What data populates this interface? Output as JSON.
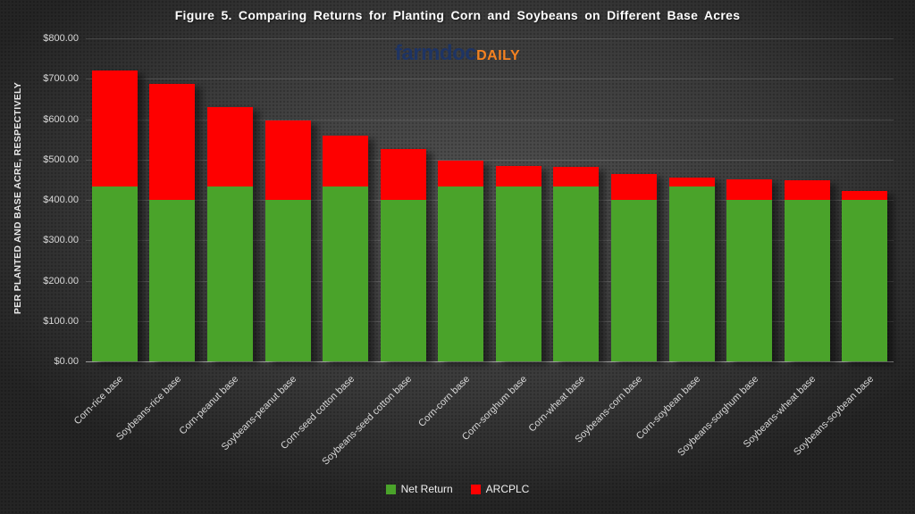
{
  "title": "Figure 5. Comparing Returns for Planting Corn and Soybeans on Different Base Acres",
  "logo": {
    "brand": "farmdoc",
    "suffix": "DAILY",
    "brand_color": "#1e3464",
    "suffix_color": "#f58220"
  },
  "colors": {
    "background_center": "#565656",
    "background_edge": "#242424",
    "net_return_green": "#4aa32a",
    "arcplc_red": "#fe0000",
    "axis_text": "#d8d8d8",
    "title_text": "#ffffff"
  },
  "chart_data": {
    "type": "bar",
    "stacked": true,
    "title": "Figure 5. Comparing Returns for Planting Corn and Soybeans on Different Base Acres",
    "xlabel": "",
    "ylabel": "PER PLANTED AND BASE ACRE, RESPECTIVELY",
    "ylim": [
      0,
      800
    ],
    "ytick_step": 100,
    "ytick_labels": [
      "$0.00",
      "$100.00",
      "$200.00",
      "$300.00",
      "$400.00",
      "$500.00",
      "$600.00",
      "$700.00",
      "$800.00"
    ],
    "grid": true,
    "legend_position": "bottom",
    "categories": [
      "Corn-rice base",
      "Soybeans-rice base",
      "Corn-peanut base",
      "Soybeans-peanut base",
      "Corn-seed cotton base",
      "Soybeans-seed cotton base",
      "Corn-corn base",
      "Corn-sorghum base",
      "Corn-wheat base",
      "Soybeans-corn base",
      "Corn-soybean base",
      "Soybeans-sorghum base",
      "Soybeans-wheat base",
      "Soybeans-soybean base"
    ],
    "series": [
      {
        "name": "Net Return",
        "color": "#4aa32a",
        "values": [
          433,
          400,
          433,
          400,
          433,
          400,
          433,
          433,
          433,
          400,
          433,
          400,
          400,
          400
        ]
      },
      {
        "name": "ARCPLC",
        "color": "#fe0000",
        "values": [
          287,
          287,
          197,
          197,
          127,
          127,
          65,
          50,
          49,
          65,
          22,
          50,
          49,
          22
        ]
      }
    ],
    "totals": [
      720,
      687,
      630,
      597,
      560,
      527,
      498,
      483,
      482,
      465,
      455,
      450,
      449,
      422
    ]
  }
}
